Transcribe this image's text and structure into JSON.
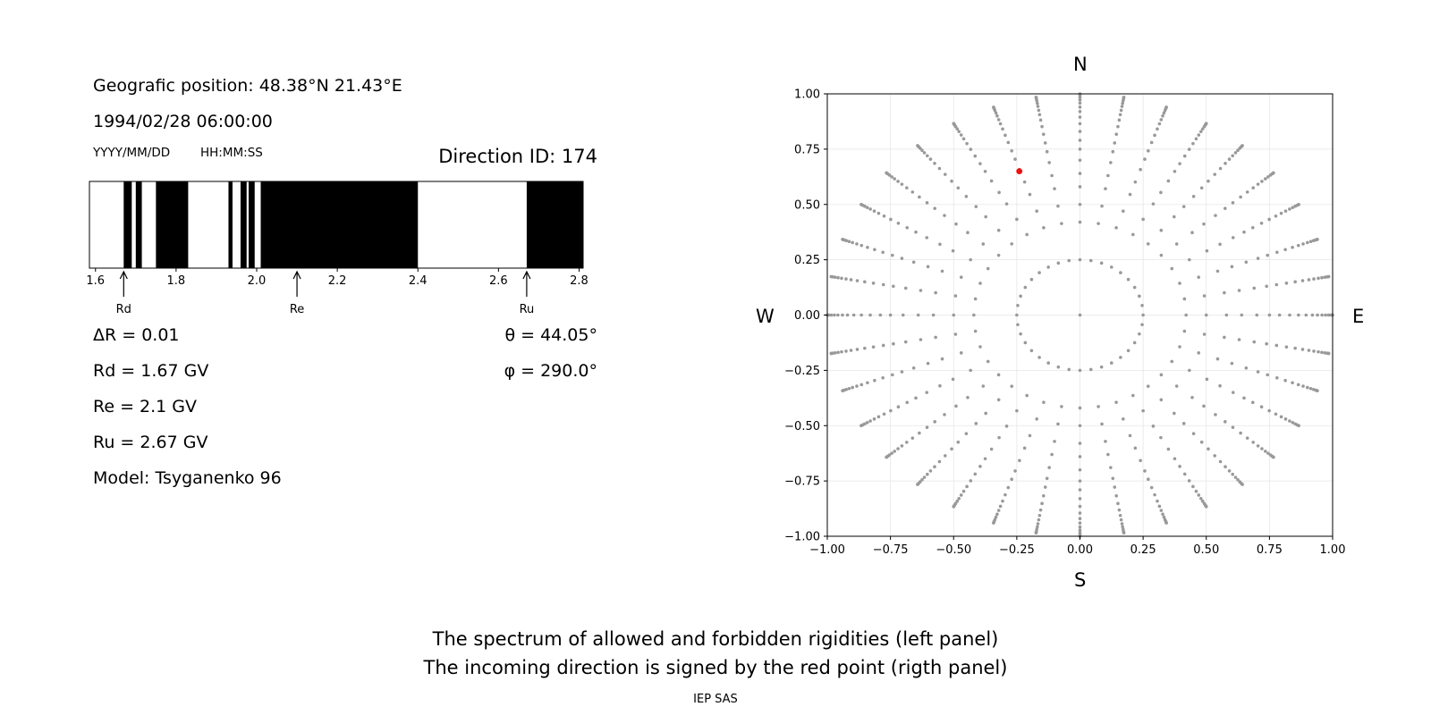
{
  "header": {
    "position": "Geografic position: 48.38°N 21.43°E",
    "datetime": "1994/02/28 06:00:00",
    "date_format": "YYYY/MM/DD",
    "time_format": "HH:MM:SS",
    "direction": "Direction ID: 174"
  },
  "params": {
    "delta_r": "ΔR = 0.01",
    "rd": "Rd = 1.67 GV",
    "re": "Re = 2.1 GV",
    "ru": "Ru = 2.67 GV",
    "model": "Model: Tsyganenko 96",
    "theta": "θ = 44.05°",
    "phi": "φ = 290.0°"
  },
  "compass": {
    "n": "N",
    "s": "S",
    "w": "W",
    "e": "E"
  },
  "captions": {
    "line1": "The spectrum of allowed and forbidden rigidities (left panel)",
    "line2": "The incoming direction is signed by the red point (rigth panel)",
    "credit": "IEP SAS"
  },
  "colors": {
    "forbidden": "#000000",
    "allowed": "#ffffff",
    "grid_point": "#999999",
    "selected_point": "#ee1111"
  },
  "chart_data": [
    {
      "type": "bar",
      "description": "rigidity spectrum strip",
      "xlim": [
        1.585,
        2.81
      ],
      "xticks": [
        1.6,
        1.8,
        2.0,
        2.2,
        2.4,
        2.6,
        2.8
      ],
      "forbidden_intervals": [
        [
          1.67,
          1.69
        ],
        [
          1.7,
          1.715
        ],
        [
          1.75,
          1.83
        ],
        [
          1.93,
          1.94
        ],
        [
          1.96,
          1.975
        ],
        [
          1.98,
          1.995
        ],
        [
          2.01,
          2.4
        ],
        [
          2.67,
          2.81
        ]
      ],
      "markers": [
        {
          "label": "Rd",
          "value": 1.67
        },
        {
          "label": "Re",
          "value": 2.1
        },
        {
          "label": "Ru",
          "value": 2.67
        }
      ]
    },
    {
      "type": "scatter",
      "description": "incoming direction map",
      "xlim": [
        -1,
        1
      ],
      "ylim": [
        -1,
        1
      ],
      "xticks": [
        -1.0,
        -0.75,
        -0.5,
        -0.25,
        0.0,
        0.25,
        0.5,
        0.75,
        1.0
      ],
      "yticks": [
        -1.0,
        -0.75,
        -0.5,
        -0.25,
        0.0,
        0.25,
        0.5,
        0.75,
        1.0
      ],
      "grid": true,
      "rings": [
        0.25,
        0.42,
        0.5,
        0.58,
        0.64,
        0.7,
        0.75,
        0.79,
        0.83,
        0.865,
        0.895,
        0.92,
        0.94,
        0.958,
        0.972,
        0.984,
        0.993,
        0.998,
        1.0
      ],
      "spoke_count": 36,
      "selected_point": {
        "x": -0.24,
        "y": 0.65
      }
    }
  ]
}
